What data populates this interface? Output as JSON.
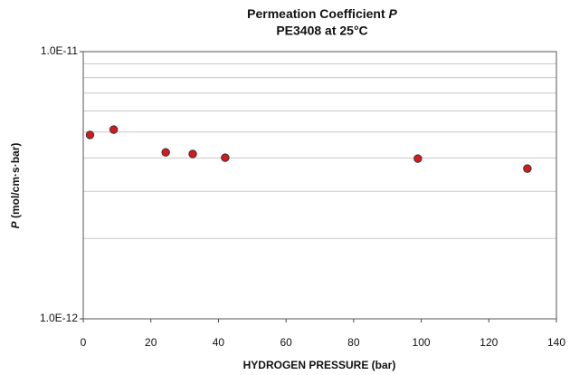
{
  "chart_data": {
    "type": "scatter",
    "title": "Permeation Coefficient",
    "title_symbol": "P",
    "subtitle": "PE3408 at 25°C",
    "x_label": "HYDROGEN PRESSURE (bar)",
    "y_label_symbol": "P",
    "y_label": "(mol/cm·s·bar)",
    "x": [
      2,
      9,
      24.4,
      32.4,
      42,
      99,
      131.4
    ],
    "values": [
      4.88e-12,
      5.11e-12,
      4.2e-12,
      4.14e-12,
      4.01e-12,
      3.98e-12,
      3.65e-12
    ],
    "color": "#d7191c",
    "xlim": [
      0,
      140
    ],
    "xticks": [
      0,
      20,
      40,
      60,
      80,
      100,
      120,
      140
    ],
    "ylim": [
      1e-12,
      1e-11
    ],
    "yticks": [
      {
        "value": 1e-12,
        "label": "1.0E-12"
      },
      {
        "value": 1e-11,
        "label": "1.0E-11"
      }
    ],
    "y_minor_grid": [
      2e-12,
      3e-12,
      4e-12,
      5e-12,
      6e-12,
      7e-12,
      8e-12,
      9e-12
    ],
    "log_y": true,
    "grid": true
  }
}
